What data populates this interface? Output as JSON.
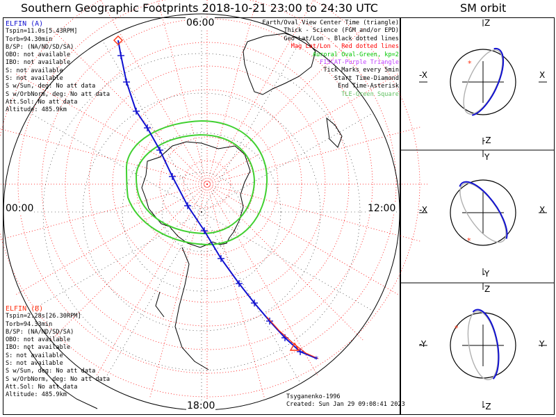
{
  "title": "Southern Geographic Footprints 2018-10-21 23:00 to 24:30 UTC",
  "orbit_title": "SM orbit",
  "hour_labels": {
    "top": "06:00",
    "left": "00:00",
    "right": "12:00",
    "bottom": "18:00"
  },
  "elfin_a": {
    "label": "ELFIN (A)",
    "color": "#1010d0",
    "lines": [
      "Tspin=11.0s[5.43RPM]",
      "Torb=94.30min",
      "B/SP: (NA/ND/SD/SA)",
      "OBO: not available",
      "IBO: not available",
      "S: not available",
      "S: not available",
      "S w/Sun, deg: No att data",
      "S w/OrbNorm, deg: No att data",
      "Att.Sol: No att data",
      "Altitude: 485.9km"
    ]
  },
  "elfin_b": {
    "label": "ELFIN (B)",
    "color": "#ff3010",
    "lines": [
      "Tspin=2.28s[26.30RPM]",
      "Torb=94.33min",
      "B/SP: (NA/ND/SD/SA)",
      "OBO: not available",
      "IBO: not available",
      "S: not available",
      "S: not available",
      "S w/Sun, deg: No att data",
      "S w/OrbNorm, deg: No att data",
      "Att.Sol: No att data",
      "Altitude: 485.9km"
    ]
  },
  "legend": [
    {
      "text": "Earth/Oval View Center Time (triangle)",
      "color": "#000000"
    },
    {
      "text": "Thick - Science (FGM and/or EPD)",
      "color": "#000000"
    },
    {
      "text": "Geo Lat/Lon - Black dotted lines",
      "color": "#000000"
    },
    {
      "text": "Mag Lat/Lon - Red dotted lines",
      "color": "#ff0000"
    },
    {
      "text": "Auroral Oval-Green, kp=2",
      "color": "#00c800"
    },
    {
      "text": "FISCAT-Purple Triangle",
      "color": "#c040ff"
    },
    {
      "text": "Tick Marks every 5min",
      "color": "#000000"
    },
    {
      "text": "Start Time-Diamond",
      "color": "#000000"
    },
    {
      "text": "End Time-Asterisk",
      "color": "#000000"
    },
    {
      "text": "TLE-Green Square",
      "color": "#60c060"
    }
  ],
  "footer": {
    "credit": "Tsyganenko-1996",
    "created": "Created: Sun Jan 29 09:08:41 2023"
  },
  "orbit_panels": [
    {
      "top": "Z",
      "bottom": "-Z",
      "left": "-X",
      "right": "X"
    },
    {
      "top": "Y",
      "bottom": "-Y",
      "left": "-X",
      "right": "X"
    },
    {
      "top": "Z",
      "bottom": "-Z",
      "left": "-Y",
      "right": "Y"
    }
  ],
  "colors": {
    "orbit_blue": "#1010d0",
    "orbit_gray": "#b0b0b0",
    "mag_grid": "#ff0000",
    "oval": "#40d030",
    "marker_red": "#ff3010"
  },
  "chart_data": {
    "type": "line",
    "projection": "southern polar",
    "title": "Southern Geographic Footprints 2018-10-21 23:00 to 24:30 UTC",
    "series": [
      {
        "name": "ELFIN (A)",
        "color": "#1010d0"
      },
      {
        "name": "ELFIN (B)",
        "color": "#ff3010"
      }
    ],
    "tick_interval_min": 5,
    "kp": 2
  }
}
